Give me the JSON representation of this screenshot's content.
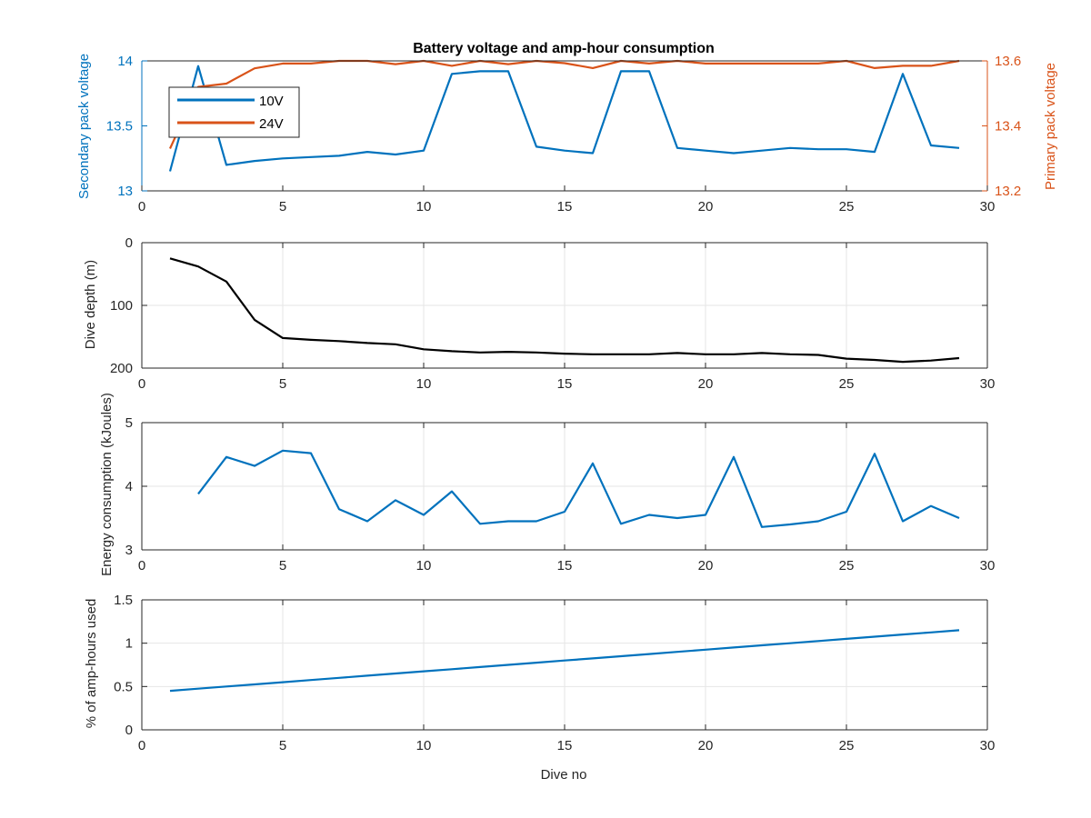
{
  "figure": {
    "xlabel": "Dive no",
    "colors": {
      "blue": "#0072BD",
      "orange": "#D95319",
      "black": "#000000",
      "grid": "#e6e6e6",
      "axis": "#262626"
    }
  },
  "chart_data": [
    {
      "type": "line",
      "title": "Battery voltage and amp-hour consumption",
      "xlim": [
        0,
        30
      ],
      "xticks": [
        0,
        5,
        10,
        15,
        20,
        25,
        30
      ],
      "ylabel": "Secondary pack voltage",
      "ylim": [
        13,
        14
      ],
      "yticks": [
        13,
        13.5,
        14
      ],
      "ytick_labels": [
        "13",
        "13.5",
        "14"
      ],
      "y2label": "Primary pack voltage",
      "y2lim": [
        13.2,
        13.6
      ],
      "y2ticks": [
        13.2,
        13.4,
        13.6
      ],
      "y2tick_labels": [
        "13.2",
        "13.4",
        "13.6"
      ],
      "grid": false,
      "legend_position": "top-left",
      "series": [
        {
          "name": "10V",
          "axis": "left",
          "color": "#0072BD",
          "x": [
            1,
            2,
            3,
            4,
            5,
            6,
            7,
            8,
            9,
            10,
            11,
            12,
            13,
            14,
            15,
            16,
            17,
            18,
            19,
            20,
            21,
            22,
            23,
            24,
            25,
            26,
            27,
            28,
            29
          ],
          "y": [
            13.15,
            13.96,
            13.2,
            13.23,
            13.25,
            13.26,
            13.27,
            13.3,
            13.28,
            13.31,
            13.9,
            13.92,
            13.92,
            13.34,
            13.31,
            13.29,
            13.92,
            13.92,
            13.33,
            13.31,
            13.29,
            13.31,
            13.33,
            13.32,
            13.32,
            13.3,
            13.9,
            13.35,
            13.33
          ]
        },
        {
          "name": "24V",
          "axis": "right",
          "color": "#D95319",
          "x": [
            1,
            2,
            3,
            4,
            5,
            6,
            7,
            8,
            9,
            10,
            11,
            12,
            13,
            14,
            15,
            16,
            17,
            18,
            19,
            20,
            21,
            22,
            23,
            24,
            25,
            26,
            27,
            28,
            29
          ],
          "y": [
            13.33,
            13.52,
            13.53,
            13.577,
            13.592,
            13.592,
            13.6,
            13.6,
            13.59,
            13.6,
            13.585,
            13.6,
            13.59,
            13.6,
            13.593,
            13.578,
            13.6,
            13.592,
            13.6,
            13.592,
            13.592,
            13.592,
            13.592,
            13.592,
            13.6,
            13.578,
            13.585,
            13.585,
            13.6
          ]
        }
      ]
    },
    {
      "type": "line",
      "xlim": [
        0,
        30
      ],
      "xticks": [
        0,
        5,
        10,
        15,
        20,
        25,
        30
      ],
      "ylabel": "Dive depth (m)",
      "ylim": [
        0,
        200
      ],
      "y_reversed": true,
      "yticks": [
        0,
        100,
        200
      ],
      "ytick_labels": [
        "0",
        "100",
        "200"
      ],
      "grid": true,
      "series": [
        {
          "color": "#000000",
          "x": [
            1,
            2,
            3,
            4,
            5,
            6,
            7,
            8,
            9,
            10,
            11,
            12,
            13,
            14,
            15,
            16,
            17,
            18,
            19,
            20,
            21,
            22,
            23,
            24,
            25,
            26,
            27,
            28,
            29
          ],
          "y": [
            25,
            38,
            62,
            123,
            152,
            155,
            157,
            160,
            162,
            170,
            173,
            175,
            174,
            175,
            177,
            178,
            178,
            178,
            176,
            178,
            178,
            176,
            178,
            179,
            185,
            187,
            190,
            188,
            184
          ]
        }
      ]
    },
    {
      "type": "line",
      "xlim": [
        0,
        30
      ],
      "xticks": [
        0,
        5,
        10,
        15,
        20,
        25,
        30
      ],
      "ylabel": "Energy consumption (kJoules)",
      "ylim": [
        3,
        5
      ],
      "yticks": [
        3,
        4,
        5
      ],
      "ytick_labels": [
        "3",
        "4",
        "5"
      ],
      "grid": true,
      "series": [
        {
          "color": "#0072BD",
          "x": [
            2,
            3,
            4,
            5,
            6,
            7,
            8,
            9,
            10,
            11,
            12,
            13,
            14,
            15,
            16,
            17,
            18,
            19,
            20,
            21,
            22,
            23,
            24,
            25,
            26,
            27,
            28,
            29
          ],
          "y": [
            3.88,
            4.46,
            4.32,
            4.56,
            4.52,
            3.64,
            3.45,
            3.78,
            3.55,
            3.92,
            3.41,
            3.45,
            3.45,
            3.6,
            4.36,
            3.41,
            3.55,
            3.5,
            3.55,
            4.46,
            3.36,
            3.4,
            3.45,
            3.6,
            4.51,
            3.45,
            3.69,
            3.5
          ]
        }
      ]
    },
    {
      "type": "line",
      "xlim": [
        0,
        30
      ],
      "xticks": [
        0,
        5,
        10,
        15,
        20,
        25,
        30
      ],
      "ylabel": "% of amp-hours used",
      "ylim": [
        0,
        1.5
      ],
      "yticks": [
        0,
        0.5,
        1,
        1.5
      ],
      "ytick_labels": [
        "0",
        "0.5",
        "1",
        "1.5"
      ],
      "grid": true,
      "series": [
        {
          "color": "#0072BD",
          "x": [
            1,
            2,
            3,
            4,
            5,
            6,
            7,
            8,
            9,
            10,
            11,
            12,
            13,
            14,
            15,
            16,
            17,
            18,
            19,
            20,
            21,
            22,
            23,
            24,
            25,
            26,
            27,
            28,
            29
          ],
          "y": [
            0.45,
            0.475,
            0.5,
            0.525,
            0.55,
            0.575,
            0.6,
            0.625,
            0.65,
            0.675,
            0.7,
            0.725,
            0.75,
            0.775,
            0.8,
            0.825,
            0.85,
            0.875,
            0.9,
            0.925,
            0.95,
            0.975,
            1.0,
            1.025,
            1.05,
            1.075,
            1.1,
            1.125,
            1.15
          ]
        }
      ]
    }
  ]
}
